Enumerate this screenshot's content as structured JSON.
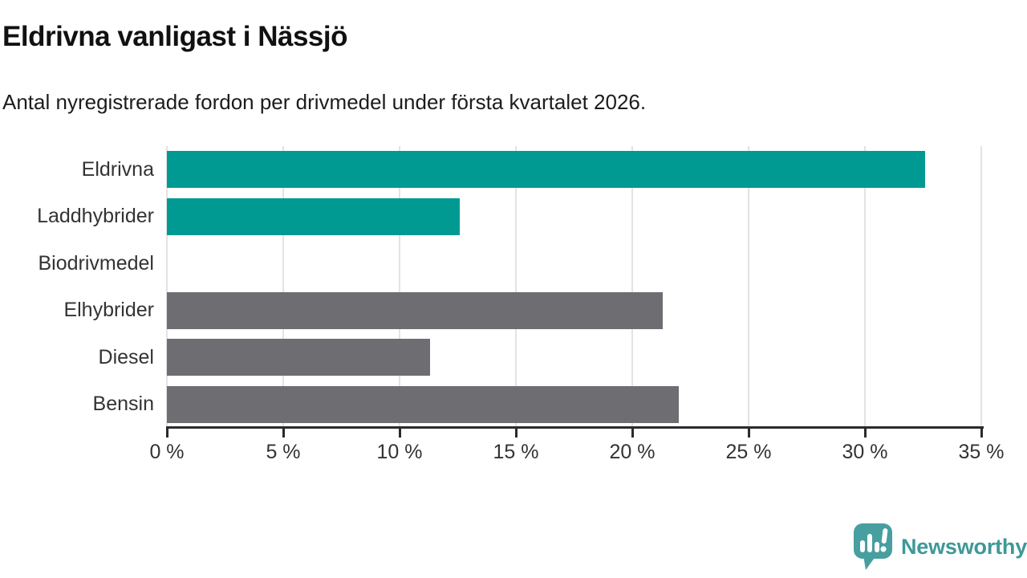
{
  "header": {
    "title": "Eldrivna vanligast i Nässjö",
    "subtitle": "Antal nyregistrerade fordon per drivmedel under första kvartalet 2026."
  },
  "chart_data": {
    "type": "bar",
    "orientation": "horizontal",
    "title": "Eldrivna vanligast i Nässjö",
    "xlabel": "",
    "ylabel": "",
    "unit": "%",
    "categories": [
      "Eldrivna",
      "Laddhybrider",
      "Biodrivmedel",
      "Elhybrider",
      "Diesel",
      "Bensin"
    ],
    "values": [
      32.6,
      12.6,
      0,
      21.3,
      11.3,
      22.0
    ],
    "bar_colors": [
      "#009a93",
      "#009a93",
      "#6d6d72",
      "#6d6d72",
      "#6d6d72",
      "#6d6d72"
    ],
    "xlim": [
      0,
      35
    ],
    "x_ticks": [
      0,
      5,
      10,
      15,
      20,
      25,
      30,
      35
    ],
    "x_tick_labels": [
      "0 %",
      "5 %",
      "10 %",
      "15 %",
      "20 %",
      "25 %",
      "30 %",
      "35 %"
    ],
    "grid": "vertical",
    "legend": "none"
  },
  "colors": {
    "highlight_bar": "#009a93",
    "default_bar": "#6d6d72",
    "gridline": "#e3e3e3",
    "axis": "#2b2b2b",
    "label_text": "#333333"
  },
  "footer": {
    "brand": "Newsworthy",
    "brand_color": "#3f9899",
    "logo_color": "#479fa0"
  }
}
